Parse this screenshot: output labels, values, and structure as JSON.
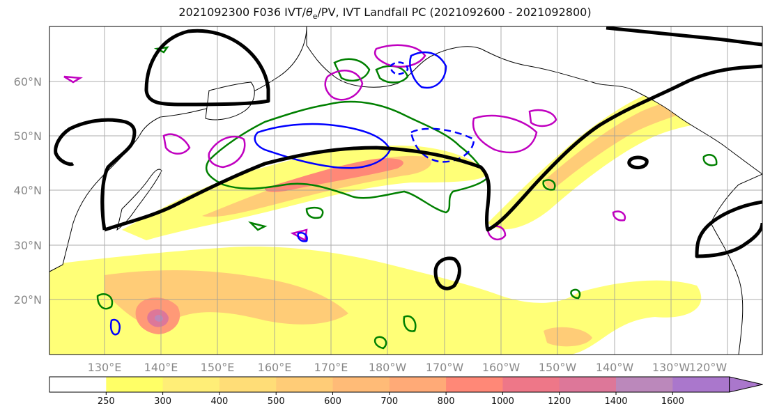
{
  "title": "2021092300 F036 IVT/θe/PV, IVT Landfall PC (2021092600 - 2021092800)",
  "title_parts": {
    "prefix": "2021092300 F036 IVT/",
    "theta": "θ",
    "sub": "e",
    "suffix": "/PV, IVT Landfall PC (2021092600 - 2021092800)"
  },
  "lat_labels": [
    "60°N",
    "50°N",
    "40°N",
    "30°N",
    "20°N"
  ],
  "lon_labels": [
    "130°E",
    "140°E",
    "150°E",
    "160°E",
    "170°E",
    "180°W",
    "170°W",
    "160°W",
    "150°W",
    "140°W",
    "130°W",
    "120°W"
  ],
  "colorbar": {
    "ticks": [
      "250",
      "300",
      "400",
      "500",
      "600",
      "700",
      "800",
      "1000",
      "1200",
      "1400",
      "1600"
    ],
    "colors": [
      "#ffffff",
      "#ffff66",
      "#ffee77",
      "#ffdd77",
      "#ffcc77",
      "#ffbb77",
      "#ffaa77",
      "#ff8877",
      "#ee7788",
      "#dd7799",
      "#bb88bb",
      "#aa77cc"
    ]
  },
  "contour_colors": {
    "ivt_landfall_pc": "#000000",
    "theta_e": "#008000",
    "pv_positive": "#c000c0",
    "pv_negative": "#0000ff"
  }
}
